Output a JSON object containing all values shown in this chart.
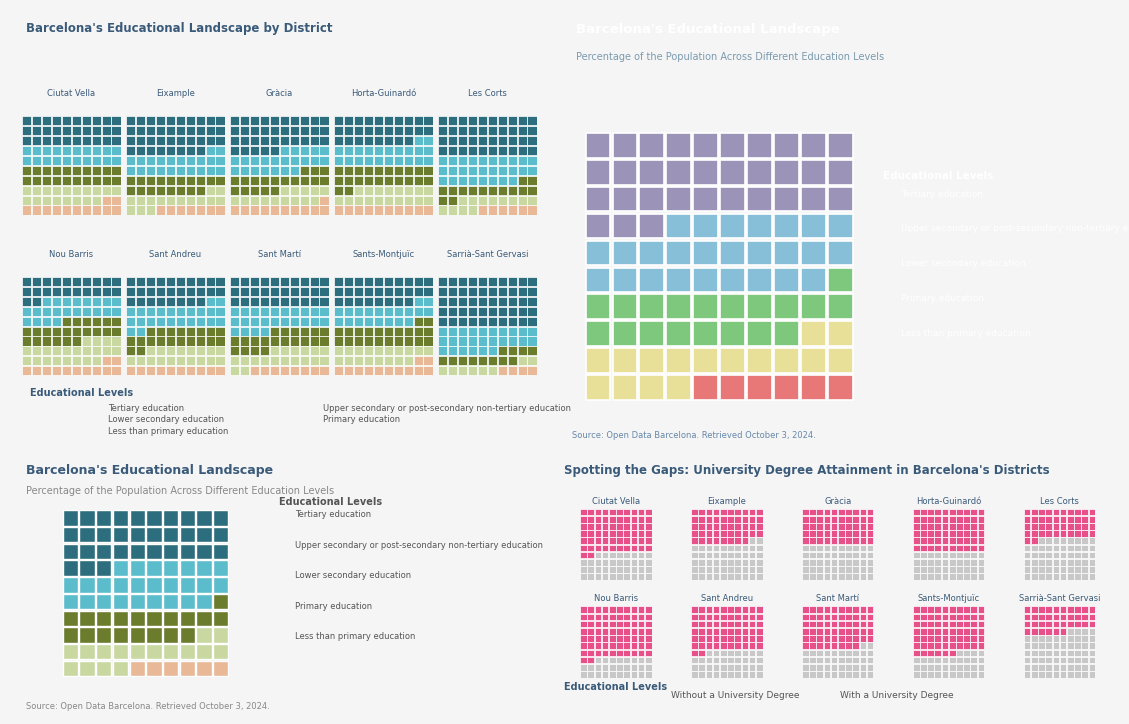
{
  "districts_row1": [
    "Ciutat Vella",
    "Eixample",
    "Gràcia",
    "Horta-Guinardó",
    "Les Corts"
  ],
  "districts_row2": [
    "Nou Barris",
    "Sant Andreu",
    "Sant Martí",
    "Sants-Montjuïc",
    "Sarrià-Sant Gervasi"
  ],
  "edu_colors_light": [
    "#2d6e7e",
    "#5bbccc",
    "#6b7c2d",
    "#c8d8a0",
    "#e8b897"
  ],
  "edu_colors_dark": [
    "#9b93b8",
    "#87bfd8",
    "#7ec87e",
    "#e8e098",
    "#e87878"
  ],
  "univ_colors": [
    "#e8508a",
    "#c8c8c8"
  ],
  "district_data": {
    "Ciutat Vella": [
      30,
      20,
      20,
      18,
      12
    ],
    "Eixample": [
      38,
      22,
      18,
      15,
      7
    ],
    "Gràcia": [
      35,
      22,
      18,
      14,
      11
    ],
    "Horta-Guinardó": [
      28,
      22,
      22,
      18,
      10
    ],
    "Les Corts": [
      40,
      28,
      14,
      12,
      6
    ],
    "Nou Barris": [
      22,
      22,
      22,
      22,
      12
    ],
    "Sant Andreu": [
      28,
      24,
      20,
      18,
      10
    ],
    "Sant Martí": [
      30,
      24,
      20,
      18,
      8
    ],
    "Sants-Montjuïc": [
      28,
      20,
      22,
      18,
      12
    ],
    "Sarrià-Sant Gervasi": [
      50,
      26,
      12,
      8,
      4
    ]
  },
  "overall_data": [
    33,
    26,
    19,
    16,
    6
  ],
  "univ_data": {
    "Ciutat Vella": 38,
    "Eixample": 52,
    "Gràcia": 50,
    "Horta-Guinardó": 40,
    "Les Corts": 58,
    "Nou Barris": 28,
    "Sant Andreu": 38,
    "Sant Martí": 42,
    "Sants-Montjuïc": 34,
    "Sarrià-Sant Gervasi": 64
  },
  "edu_labels": [
    "Tertiary education",
    "Upper secondary or post-secondary non-tertiary education",
    "Lower secondary education",
    "Primary education",
    "Less than primary education"
  ],
  "source_text": "Source: Open Data Barcelona. Retrieved October 3, 2024.",
  "title_tl": "Barcelona's Educational Landscape by District",
  "title_bl": "Barcelona's Educational Landscape",
  "subtitle_bl": "Percentage of the Population Across Different Education Levels",
  "title_tr": "Barcelona's Educational Landscape",
  "subtitle_tr": "Percentage of the Population Across Different Education Levels",
  "title_br": "Spotting the Gaps: University Degree Attainment in Barcelona's Districts",
  "legend_univ": [
    "Without a University Degree",
    "With a University Degree"
  ],
  "edu_legend_title": "Educational Levels",
  "bg_dark": "#0d1b35",
  "bg_light": "#ffffff",
  "bg_outer": "#f5f5f5",
  "title_color_light": "#3a5a7a",
  "subtitle_color": "#888888",
  "text_color_dark": "#ffffff",
  "source_color_dark": "#6688aa",
  "source_color_light": "#888888"
}
